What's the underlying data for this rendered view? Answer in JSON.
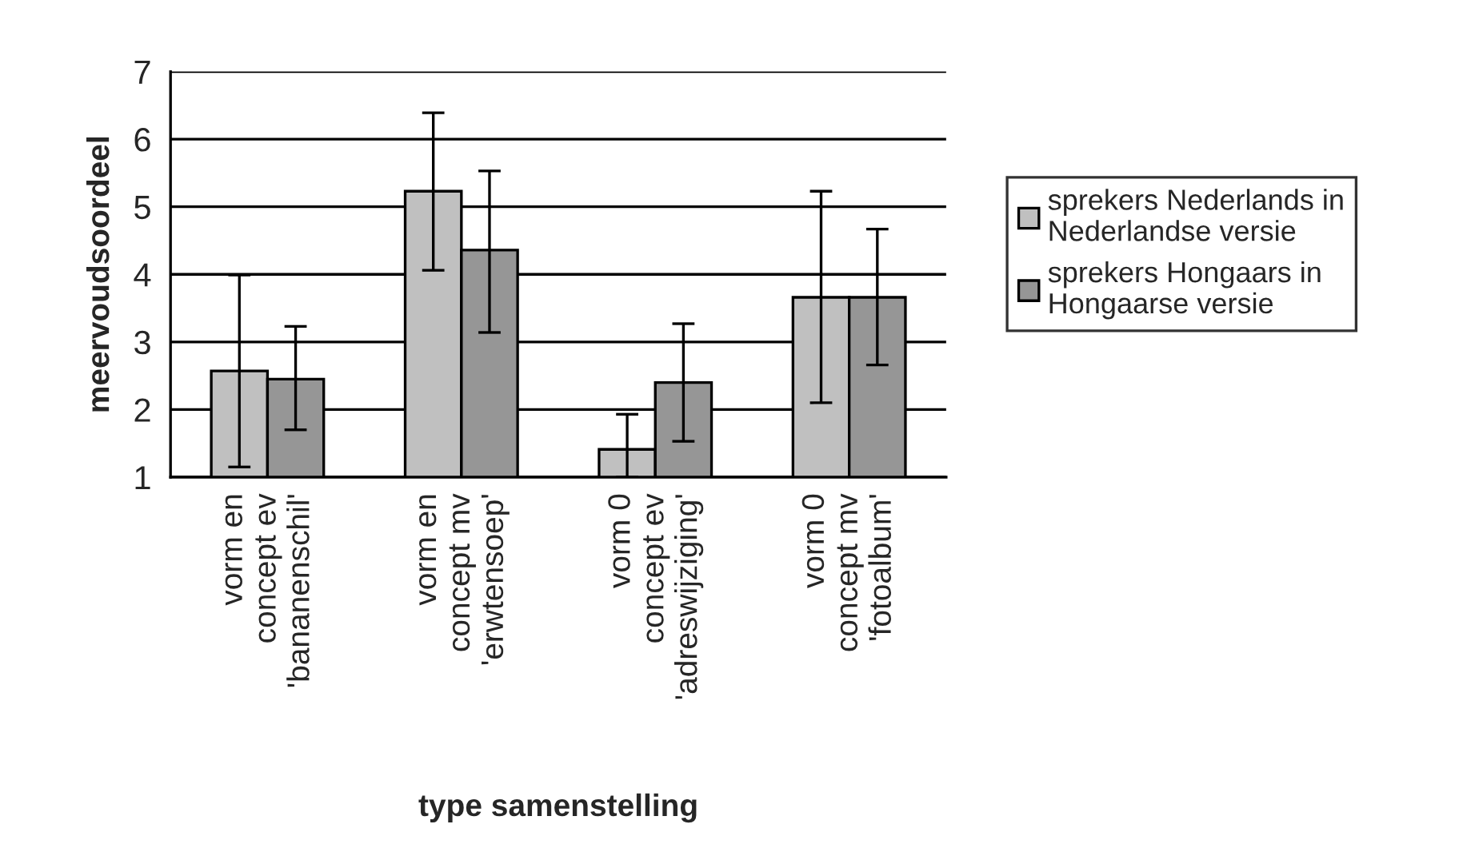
{
  "chart_data": {
    "type": "bar",
    "xlabel": "type samenstelling",
    "ylabel": "meervoudsoordeel",
    "categories": [
      "vorm en\nconcept ev\n'bananenschil'",
      "vorm en\nconcept mv\n'erwtensoep'",
      "vorm 0\nconcept ev\n'adreswijziging'",
      "vorm 0\nconcept mv\n'fotoalbum'"
    ],
    "series": [
      {
        "name": "sprekers Nederlands in\nNederlandse versie",
        "color": "#c0c0c0",
        "values": [
          2.57,
          5.23,
          1.41,
          3.66
        ],
        "errors": [
          [
            1.15,
            3.99
          ],
          [
            4.06,
            6.39
          ],
          [
            1.0,
            1.93
          ],
          [
            2.1,
            5.23
          ]
        ]
      },
      {
        "name": "sprekers Hongaars in\nHongaarse versie",
        "color": "#969696",
        "values": [
          2.45,
          4.36,
          2.4,
          3.66
        ],
        "errors": [
          [
            1.7,
            3.23
          ],
          [
            3.14,
            5.53
          ],
          [
            1.53,
            3.27
          ],
          [
            2.66,
            4.67
          ]
        ]
      }
    ],
    "ylim": [
      1,
      7
    ],
    "yticks": [
      1,
      2,
      3,
      4,
      5,
      6,
      7
    ],
    "grid": "y",
    "legend": "right"
  }
}
